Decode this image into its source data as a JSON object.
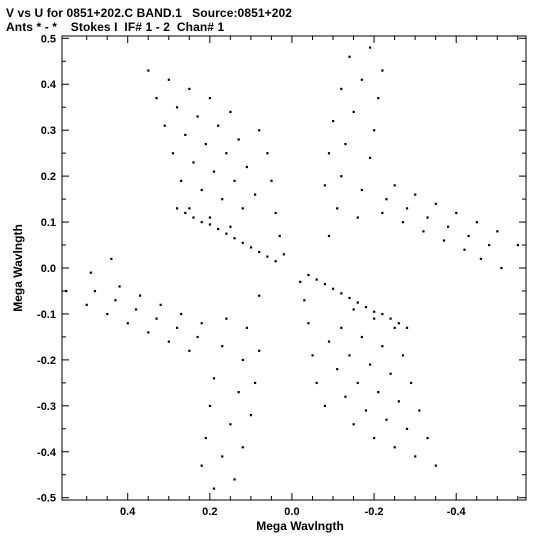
{
  "header": {
    "line1": "V vs U for 0851+202.C BAND.1   Source:0851+202",
    "line2": "Ants * - *    Stokes I  IF# 1 - 2  Chan# 1"
  },
  "chart_data": {
    "type": "scatter",
    "title": "",
    "xlabel": "Mega Wavlngth",
    "ylabel": "Mega Wavlngth",
    "xlim": [
      0.56,
      -0.57
    ],
    "ylim": [
      -0.505,
      0.505
    ],
    "x_direction": "decreasing-to-right",
    "xticks": [
      0.4,
      0.2,
      0.0,
      -0.2,
      -0.4
    ],
    "xtick_labels": [
      "0.4",
      "0.2",
      "0.0",
      "-0.2",
      "-0.4"
    ],
    "yticks": [
      0.5,
      0.4,
      0.3,
      0.2,
      0.1,
      0.0,
      -0.1,
      -0.2,
      -0.3,
      -0.4,
      -0.5
    ],
    "ytick_labels": [
      "0.5",
      "0.4",
      "0.3",
      "0.2",
      "0.1",
      "0.0",
      "-0.1",
      "-0.2",
      "-0.3",
      "-0.4",
      "-0.5"
    ],
    "grid": false,
    "marker_color": "#000000",
    "series": [
      {
        "points": [
          [
            0.35,
            0.43
          ],
          [
            0.33,
            0.37
          ],
          [
            0.31,
            0.31
          ],
          [
            0.29,
            0.25
          ],
          [
            0.27,
            0.19
          ],
          [
            0.25,
            0.13
          ],
          [
            0.3,
            0.41
          ],
          [
            0.28,
            0.35
          ],
          [
            0.26,
            0.29
          ],
          [
            0.24,
            0.23
          ],
          [
            0.22,
            0.17
          ],
          [
            0.2,
            0.11
          ],
          [
            0.25,
            0.39
          ],
          [
            0.23,
            0.33
          ],
          [
            0.21,
            0.27
          ],
          [
            0.19,
            0.21
          ],
          [
            0.17,
            0.15
          ],
          [
            0.15,
            0.09
          ],
          [
            0.2,
            0.37
          ],
          [
            0.18,
            0.31
          ],
          [
            0.16,
            0.25
          ],
          [
            0.14,
            0.19
          ],
          [
            0.12,
            0.13
          ],
          [
            0.15,
            0.34
          ],
          [
            0.13,
            0.28
          ],
          [
            0.11,
            0.22
          ],
          [
            0.09,
            0.16
          ],
          [
            0.08,
            0.3
          ],
          [
            0.06,
            0.25
          ],
          [
            0.05,
            0.19
          ],
          [
            0.04,
            0.12
          ],
          [
            0.03,
            0.07
          ],
          [
            0.02,
            0.03
          ],
          [
            0.28,
            0.13
          ],
          [
            0.26,
            0.12
          ],
          [
            0.24,
            0.11
          ],
          [
            0.22,
            0.1
          ],
          [
            0.2,
            0.095
          ],
          [
            0.18,
            0.085
          ],
          [
            0.16,
            0.075
          ],
          [
            0.14,
            0.065
          ],
          [
            0.12,
            0.055
          ],
          [
            0.1,
            0.045
          ],
          [
            0.08,
            0.035
          ],
          [
            0.06,
            0.025
          ],
          [
            0.04,
            0.015
          ],
          [
            -0.35,
            -0.43
          ],
          [
            -0.33,
            -0.37
          ],
          [
            -0.31,
            -0.31
          ],
          [
            -0.29,
            -0.25
          ],
          [
            -0.27,
            -0.19
          ],
          [
            -0.25,
            -0.13
          ],
          [
            -0.3,
            -0.41
          ],
          [
            -0.28,
            -0.35
          ],
          [
            -0.26,
            -0.29
          ],
          [
            -0.24,
            -0.23
          ],
          [
            -0.22,
            -0.17
          ],
          [
            -0.2,
            -0.11
          ],
          [
            -0.25,
            -0.39
          ],
          [
            -0.23,
            -0.33
          ],
          [
            -0.21,
            -0.27
          ],
          [
            -0.19,
            -0.21
          ],
          [
            -0.17,
            -0.15
          ],
          [
            -0.15,
            -0.09
          ],
          [
            -0.2,
            -0.37
          ],
          [
            -0.18,
            -0.31
          ],
          [
            -0.16,
            -0.25
          ],
          [
            -0.14,
            -0.19
          ],
          [
            -0.12,
            -0.13
          ],
          [
            -0.15,
            -0.34
          ],
          [
            -0.13,
            -0.28
          ],
          [
            -0.11,
            -0.22
          ],
          [
            -0.09,
            -0.16
          ],
          [
            -0.08,
            -0.3
          ],
          [
            -0.06,
            -0.25
          ],
          [
            -0.05,
            -0.19
          ],
          [
            -0.04,
            -0.12
          ],
          [
            -0.03,
            -0.07
          ],
          [
            -0.02,
            -0.03
          ],
          [
            -0.28,
            -0.13
          ],
          [
            -0.26,
            -0.12
          ],
          [
            -0.24,
            -0.11
          ],
          [
            -0.22,
            -0.1
          ],
          [
            -0.2,
            -0.095
          ],
          [
            -0.18,
            -0.085
          ],
          [
            -0.16,
            -0.075
          ],
          [
            -0.14,
            -0.065
          ],
          [
            -0.12,
            -0.055
          ],
          [
            -0.1,
            -0.045
          ],
          [
            -0.08,
            -0.035
          ],
          [
            -0.06,
            -0.025
          ],
          [
            -0.04,
            -0.015
          ],
          [
            -0.19,
            0.48
          ],
          [
            -0.17,
            0.41
          ],
          [
            -0.15,
            0.34
          ],
          [
            -0.13,
            0.27
          ],
          [
            -0.12,
            0.2
          ],
          [
            -0.11,
            0.13
          ],
          [
            -0.14,
            0.46
          ],
          [
            -0.12,
            0.39
          ],
          [
            -0.1,
            0.32
          ],
          [
            -0.09,
            0.25
          ],
          [
            -0.08,
            0.18
          ],
          [
            -0.22,
            0.43
          ],
          [
            -0.21,
            0.37
          ],
          [
            -0.2,
            0.3
          ],
          [
            -0.19,
            0.24
          ],
          [
            -0.17,
            0.17
          ],
          [
            -0.16,
            0.11
          ],
          [
            -0.25,
            0.18
          ],
          [
            -0.3,
            0.16
          ],
          [
            -0.35,
            0.14
          ],
          [
            -0.4,
            0.12
          ],
          [
            -0.45,
            0.1
          ],
          [
            -0.5,
            0.08
          ],
          [
            -0.55,
            0.05
          ],
          [
            -0.23,
            0.15
          ],
          [
            -0.28,
            0.13
          ],
          [
            -0.33,
            0.11
          ],
          [
            -0.38,
            0.09
          ],
          [
            -0.43,
            0.07
          ],
          [
            -0.48,
            0.05
          ],
          [
            -0.22,
            0.12
          ],
          [
            -0.27,
            0.1
          ],
          [
            -0.32,
            0.08
          ],
          [
            -0.37,
            0.06
          ],
          [
            -0.42,
            0.04
          ],
          [
            -0.46,
            0.02
          ],
          [
            -0.51,
            0.0
          ],
          [
            -0.09,
            0.07
          ],
          [
            0.19,
            -0.48
          ],
          [
            0.17,
            -0.41
          ],
          [
            0.15,
            -0.34
          ],
          [
            0.13,
            -0.27
          ],
          [
            0.12,
            -0.2
          ],
          [
            0.11,
            -0.13
          ],
          [
            0.14,
            -0.46
          ],
          [
            0.12,
            -0.39
          ],
          [
            0.1,
            -0.32
          ],
          [
            0.09,
            -0.25
          ],
          [
            0.08,
            -0.18
          ],
          [
            0.22,
            -0.43
          ],
          [
            0.21,
            -0.37
          ],
          [
            0.2,
            -0.3
          ],
          [
            0.19,
            -0.24
          ],
          [
            0.17,
            -0.17
          ],
          [
            0.16,
            -0.11
          ],
          [
            0.25,
            -0.18
          ],
          [
            0.3,
            -0.16
          ],
          [
            0.35,
            -0.14
          ],
          [
            0.4,
            -0.12
          ],
          [
            0.45,
            -0.1
          ],
          [
            0.5,
            -0.08
          ],
          [
            0.55,
            -0.05
          ],
          [
            0.23,
            -0.15
          ],
          [
            0.28,
            -0.13
          ],
          [
            0.33,
            -0.11
          ],
          [
            0.38,
            -0.09
          ],
          [
            0.43,
            -0.07
          ],
          [
            0.48,
            -0.05
          ],
          [
            0.22,
            -0.12
          ],
          [
            0.27,
            -0.1
          ],
          [
            0.32,
            -0.08
          ],
          [
            0.37,
            -0.06
          ],
          [
            0.42,
            -0.04
          ],
          [
            0.44,
            0.02
          ],
          [
            0.49,
            -0.01
          ],
          [
            0.08,
            -0.06
          ]
        ]
      }
    ]
  }
}
